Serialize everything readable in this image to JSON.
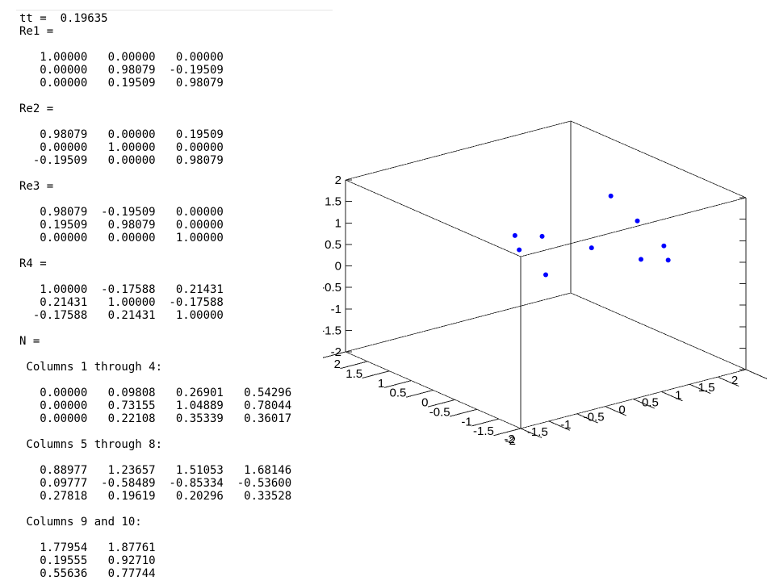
{
  "console": {
    "lines": [
      "tt =  0.19635",
      "Re1 =",
      "",
      "   1.00000   0.00000   0.00000",
      "   0.00000   0.98079  -0.19509",
      "   0.00000   0.19509   0.98079",
      "",
      "Re2 =",
      "",
      "   0.98079   0.00000   0.19509",
      "   0.00000   1.00000   0.00000",
      "  -0.19509   0.00000   0.98079",
      "",
      "Re3 =",
      "",
      "   0.98079  -0.19509   0.00000",
      "   0.19509   0.98079   0.00000",
      "   0.00000   0.00000   1.00000",
      "",
      "R4 =",
      "",
      "   1.00000  -0.17588   0.21431",
      "   0.21431   1.00000  -0.17588",
      "  -0.17588   0.21431   1.00000",
      "",
      "N =",
      "",
      " Columns 1 through 4:",
      "",
      "   0.00000   0.09808   0.26901   0.54296",
      "   0.00000   0.73155   1.04889   0.78044",
      "   0.00000   0.22108   0.35339   0.36017",
      "",
      " Columns 5 through 8:",
      "",
      "   0.88977   1.23657   1.51053   1.68146",
      "   0.09777  -0.58489  -0.85334  -0.53600",
      "   0.27818   0.19619   0.20296   0.33528",
      "",
      " Columns 9 and 10:",
      "",
      "   1.77954   1.87761",
      "   0.19555   0.92710",
      "   0.55636   0.77744"
    ]
  },
  "chart_data": {
    "type": "scatter",
    "dimensions": 3,
    "marker_color": "#0000ff",
    "xlim": [
      -2,
      2
    ],
    "ylim": [
      -2,
      2
    ],
    "zlim": [
      -2,
      2
    ],
    "x_ticks": [
      "-2",
      "-1.5",
      "-1",
      "-0.5",
      "0",
      "0.5",
      "1",
      "1.5",
      "2"
    ],
    "y_ticks": [
      "-2",
      "-1.5",
      "-1",
      "-0.5",
      "0",
      "0.5",
      "1",
      "1.5",
      "2"
    ],
    "z_ticks": [
      "-2",
      "-1.5",
      "-1",
      "-0.5",
      "0",
      "0.5",
      "1",
      "1.5",
      "2"
    ],
    "points": {
      "x": [
        0.0,
        0.09808,
        0.26901,
        0.54296,
        0.88977,
        1.23657,
        1.51053,
        1.68146,
        1.77954,
        1.87761
      ],
      "y": [
        0.0,
        0.73155,
        1.04889,
        0.78044,
        0.09777,
        -0.58489,
        -0.85334,
        -0.536,
        0.19555,
        0.9271
      ],
      "z": [
        0.0,
        0.22108,
        0.35339,
        0.36017,
        0.27818,
        0.19619,
        0.20296,
        0.33528,
        0.55636,
        0.77744
      ]
    },
    "grid": false,
    "box": true
  }
}
